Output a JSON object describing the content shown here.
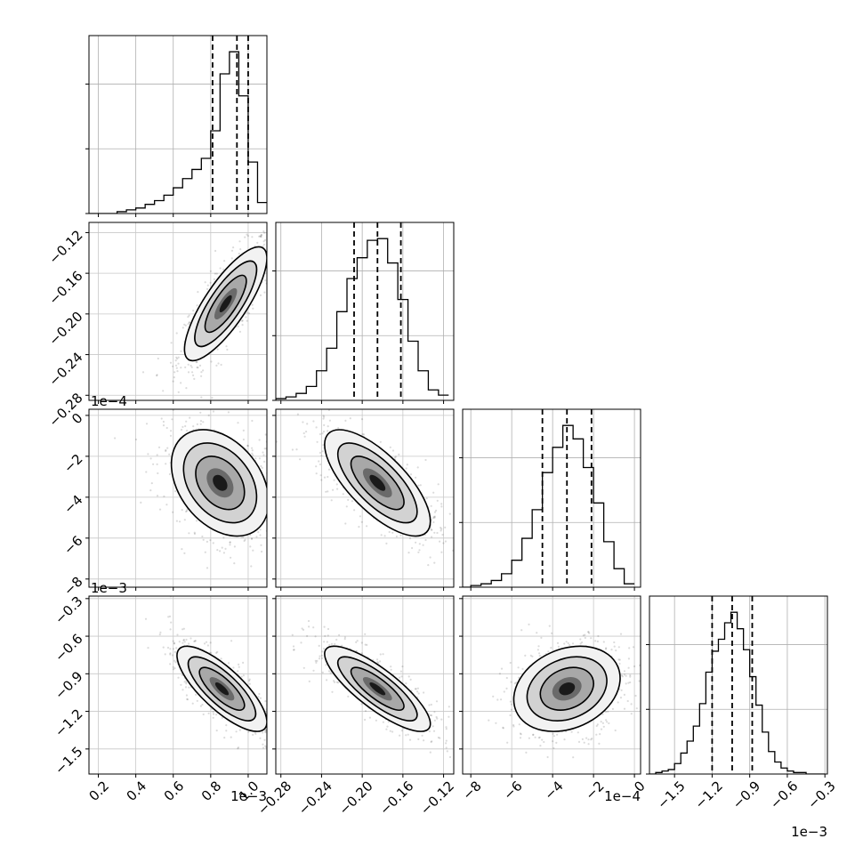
{
  "chart_data": {
    "type": "corner",
    "parameters": [
      {
        "range": [
          0.15,
          1.1
        ],
        "ticks": [
          "0.2",
          "0.4",
          "0.6",
          "0.8",
          "1.0"
        ],
        "tick_values": [
          0.2,
          0.4,
          0.6,
          0.8,
          1.0
        ],
        "offset": "1e−3",
        "quantiles": [
          0.81,
          0.94,
          1.0
        ]
      },
      {
        "range": [
          -0.285,
          -0.11
        ],
        "ticks": [
          "−0.28",
          "−0.24",
          "−0.20",
          "−0.16",
          "−0.12"
        ],
        "tick_values": [
          -0.28,
          -0.24,
          -0.2,
          -0.16,
          -0.12
        ],
        "offset": "",
        "quantiles": [
          -0.208,
          -0.185,
          -0.162
        ]
      },
      {
        "range": [
          -8.4,
          0.3
        ],
        "ticks": [
          "−8",
          "−6",
          "−4",
          "−2",
          "0"
        ],
        "tick_values": [
          -8,
          -6,
          -4,
          -2,
          0
        ],
        "offset": "1e−4",
        "quantiles": [
          -4.5,
          -3.3,
          -2.1
        ]
      },
      {
        "range": [
          -1.7,
          -0.28
        ],
        "ticks": [
          "−1.5",
          "−1.2",
          "−0.9",
          "−0.6",
          "−0.3"
        ],
        "tick_values": [
          -1.5,
          -1.2,
          -0.9,
          -0.6,
          -0.3
        ],
        "offset": "1e−3",
        "quantiles": [
          -1.2,
          -1.04,
          -0.88
        ]
      }
    ],
    "histograms": [
      {
        "edges": [
          0.1,
          0.15,
          0.2,
          0.25,
          0.3,
          0.35,
          0.4,
          0.45,
          0.5,
          0.55,
          0.6,
          0.65,
          0.7,
          0.75,
          0.8,
          0.85,
          0.9,
          0.95,
          1.0,
          1.05,
          1.1
        ],
        "counts": [
          0,
          0,
          0,
          0,
          1,
          2,
          3,
          5,
          7,
          10,
          14,
          19,
          24,
          30,
          45,
          76,
          88,
          64,
          28,
          6
        ]
      },
      {
        "edges": [
          -0.285,
          -0.275,
          -0.265,
          -0.255,
          -0.245,
          -0.235,
          -0.225,
          -0.215,
          -0.205,
          -0.195,
          -0.185,
          -0.175,
          -0.165,
          -0.155,
          -0.145,
          -0.135,
          -0.125,
          -0.115
        ],
        "counts": [
          1,
          2,
          4,
          8,
          17,
          30,
          51,
          70,
          82,
          92,
          93,
          79,
          58,
          34,
          17,
          6,
          3
        ]
      },
      {
        "edges": [
          -8.5,
          -8,
          -7.5,
          -7,
          -6.5,
          -6,
          -5.5,
          -5,
          -4.5,
          -4,
          -3.5,
          -3,
          -2.5,
          -2,
          -1.5,
          -1,
          -0.5,
          0
        ],
        "counts": [
          0,
          1,
          2,
          4,
          8,
          16,
          29,
          46,
          68,
          83,
          96,
          88,
          71,
          50,
          27,
          11,
          2
        ]
      },
      {
        "edges": [
          -1.75,
          -1.7,
          -1.65,
          -1.6,
          -1.55,
          -1.5,
          -1.45,
          -1.4,
          -1.35,
          -1.3,
          -1.25,
          -1.2,
          -1.15,
          -1.1,
          -1.05,
          -1.0,
          -0.95,
          -0.9,
          -0.85,
          -0.8,
          -0.75,
          -0.7,
          -0.65,
          -0.6,
          -0.55,
          -0.5,
          -0.45,
          -0.4,
          -0.35,
          -0.3
        ],
        "counts": [
          0,
          0,
          1,
          2,
          3,
          7,
          14,
          22,
          32,
          47,
          68,
          82,
          90,
          101,
          108,
          97,
          83,
          65,
          46,
          28,
          15,
          8,
          4,
          2,
          1,
          1,
          0,
          0,
          0
        ]
      }
    ],
    "pairs": [
      {
        "row": 1,
        "col": 0,
        "mean": [
          0.88,
          -0.19
        ],
        "sd": [
          0.11,
          0.028
        ],
        "rho": 0.8
      },
      {
        "row": 2,
        "col": 0,
        "mean": [
          0.85,
          -3.3
        ],
        "sd": [
          0.13,
          1.3
        ],
        "rho": -0.35
      },
      {
        "row": 2,
        "col": 1,
        "mean": [
          -0.185,
          -3.3
        ],
        "sd": [
          0.026,
          1.3
        ],
        "rho": -0.72
      },
      {
        "row": 3,
        "col": 0,
        "mean": [
          0.86,
          -1.02
        ],
        "sd": [
          0.12,
          0.17
        ],
        "rho": -0.78
      },
      {
        "row": 3,
        "col": 1,
        "mean": [
          -0.185,
          -1.02
        ],
        "sd": [
          0.026,
          0.17
        ],
        "rho": -0.82
      },
      {
        "row": 3,
        "col": 2,
        "mean": [
          -3.3,
          -1.02
        ],
        "sd": [
          1.3,
          0.17
        ],
        "rho": 0.25
      }
    ]
  }
}
